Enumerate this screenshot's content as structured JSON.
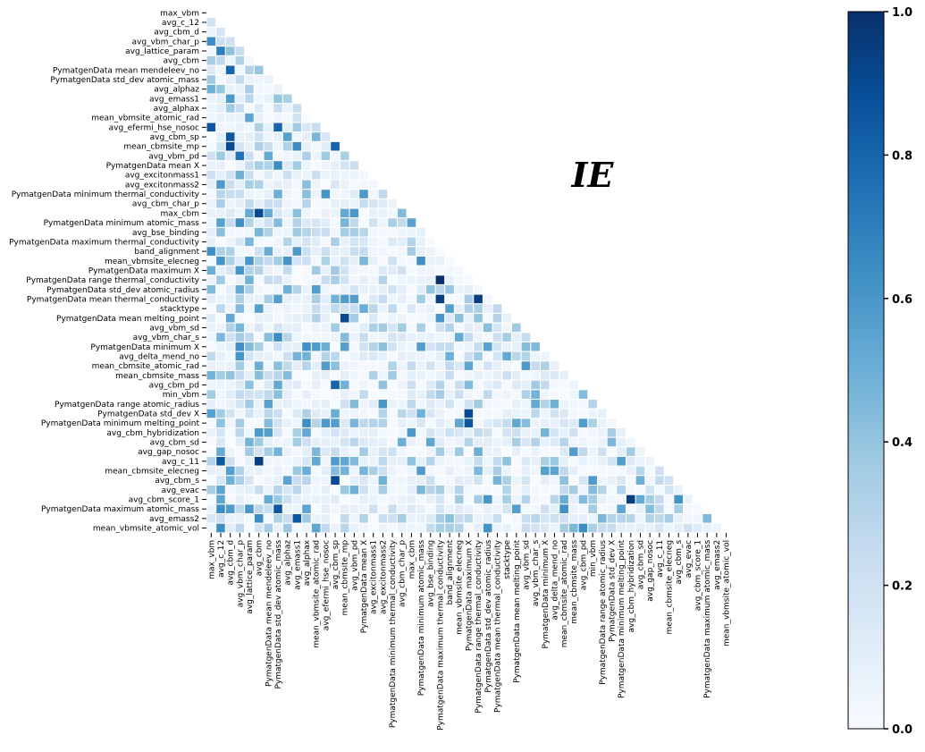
{
  "chart_data": {
    "type": "heatmap",
    "title": "",
    "annotation": "IE",
    "mask": "upper-triangle",
    "colormap": "Blues",
    "colorbar": {
      "min": 0.0,
      "max": 1.0,
      "ticks": [
        0.0,
        0.2,
        0.4,
        0.6,
        0.8,
        1.0
      ],
      "tick_labels": [
        "0.0",
        "0.2",
        "0.4",
        "0.6",
        "0.8",
        "1.0"
      ],
      "low_color": "#f7fbff",
      "high_color": "#08306b"
    },
    "labels": [
      "max_vbm",
      "avg_c_12",
      "avg_cbm_d",
      "avg_vbm_char_p",
      "avg_lattice_param",
      "avg_cbm",
      "PymatgenData mean mendeleev_no",
      "PymatgenData std_dev atomic_mass",
      "avg_alphaz",
      "avg_emass1",
      "avg_alphax",
      "mean_vbmsite_atomic_rad",
      "avg_efermi_hse_nosoc",
      "avg_cbm_sp",
      "mean_cbmsite_mp",
      "avg_vbm_pd",
      "PymatgenData mean X",
      "avg_excitonmass1",
      "avg_excitonmass2",
      "PymatgenData minimum thermal_conductivity",
      "avg_cbm_char_p",
      "max_cbm",
      "PymatgenData minimum atomic_mass",
      "avg_bse_binding",
      "PymatgenData maximum thermal_conductivity",
      "band_alignment",
      "mean_vbmsite_elecneg",
      "PymatgenData maximum X",
      "PymatgenData range thermal_conductivity",
      "PymatgenData std_dev atomic_radius",
      "PymatgenData mean thermal_conductivity",
      "stacktype",
      "PymatgenData mean melting_point",
      "avg_vbm_sd",
      "avg_vbm_char_s",
      "PymatgenData minimum X",
      "avg_delta_mend_no",
      "mean_cbmsite_atomic_rad",
      "mean_cbmsite_mass",
      "avg_cbm_pd",
      "min_vbm",
      "PymatgenData range atomic_radius",
      "PymatgenData std_dev X",
      "PymatgenData minimum melting_point",
      "avg_cbm_hybridization",
      "avg_cbm_sd",
      "avg_gap_nosoc",
      "avg_c_11",
      "mean_cbmsite_elecneg",
      "avg_cbm_s",
      "avg_evac",
      "avg_cbm_score_1",
      "PymatgenData maximum atomic_mass",
      "avg_emass2",
      "mean_vbmsite_atomic_vol"
    ],
    "strong_cells": [
      {
        "row": "avg_lattice_param",
        "col": "avg_c_12",
        "value": 0.7
      },
      {
        "row": "PymatgenData mean mendeleev_no",
        "col": "avg_cbm_d",
        "value": 0.8
      },
      {
        "row": "avg_efermi_hse_nosoc",
        "col": "max_vbm",
        "value": 0.85
      },
      {
        "row": "avg_efermi_hse_nosoc",
        "col": "PymatgenData std_dev atomic_mass",
        "value": 0.8
      },
      {
        "row": "avg_cbm_sp",
        "col": "avg_cbm_d",
        "value": 0.85
      },
      {
        "row": "mean_cbmsite_mp",
        "col": "avg_cbm_d",
        "value": 0.9
      },
      {
        "row": "mean_cbmsite_mp",
        "col": "avg_cbm_sp",
        "value": 0.8
      },
      {
        "row": "avg_vbm_pd",
        "col": "avg_vbm_char_p",
        "value": 0.75
      },
      {
        "row": "max_cbm",
        "col": "avg_cbm",
        "value": 0.9
      },
      {
        "row": "PymatgenData range thermal_conductivity",
        "col": "PymatgenData maximum thermal_conductivity",
        "value": 1.0
      },
      {
        "row": "PymatgenData mean thermal_conductivity",
        "col": "PymatgenData maximum thermal_conductivity",
        "value": 0.95
      },
      {
        "row": "PymatgenData mean thermal_conductivity",
        "col": "PymatgenData range thermal_conductivity",
        "value": 0.95
      },
      {
        "row": "PymatgenData mean melting_point",
        "col": "mean_cbmsite_mp",
        "value": 0.9
      },
      {
        "row": "avg_cbm_pd",
        "col": "avg_cbm_sp",
        "value": 0.8
      },
      {
        "row": "PymatgenData std_dev X",
        "col": "PymatgenData maximum X",
        "value": 0.9
      },
      {
        "row": "PymatgenData minimum melting_point",
        "col": "PymatgenData maximum X",
        "value": 0.85
      },
      {
        "row": "avg_c_11",
        "col": "avg_c_12",
        "value": 0.85
      },
      {
        "row": "avg_c_11",
        "col": "avg_cbm",
        "value": 0.95
      },
      {
        "row": "avg_cbm_s",
        "col": "avg_cbm_sp",
        "value": 0.9
      },
      {
        "row": "avg_cbm_score_1",
        "col": "avg_cbm_hybridization",
        "value": 0.95
      },
      {
        "row": "PymatgenData maximum atomic_mass",
        "col": "PymatgenData std_dev atomic_mass",
        "value": 0.85
      },
      {
        "row": "avg_emass2",
        "col": "avg_emass1",
        "value": 0.85
      }
    ]
  }
}
